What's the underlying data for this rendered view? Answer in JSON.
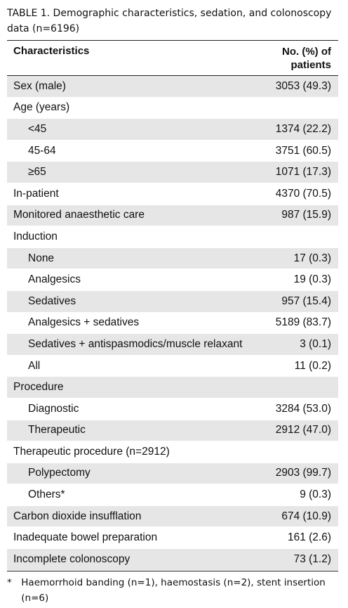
{
  "title": "TABLE 1. Demographic characteristics, sedation, and colonoscopy data (n=6196)",
  "table": {
    "header": [
      "Characteristics",
      "No. (%) of patients"
    ],
    "rows": [
      {
        "label": "Sex (male)",
        "value": "3053 (49.3)"
      },
      {
        "label": "Age (years)",
        "subrows": [
          {
            "label": "<45",
            "value": "1374 (22.2)"
          },
          {
            "label": "45-64",
            "value": "3751 (60.5)"
          },
          {
            "label": "≥65",
            "value": "1071 (17.3)"
          }
        ]
      },
      {
        "label": "In-patient",
        "value": "4370 (70.5)"
      },
      {
        "label": "Monitored anaesthetic care",
        "value": "987 (15.9)"
      },
      {
        "label": "Induction",
        "subrows": [
          {
            "label": "None",
            "value": "17 (0.3)"
          },
          {
            "label": "Analgesics",
            "value": "19 (0.3)"
          },
          {
            "label": "Sedatives",
            "value": "957 (15.4)"
          },
          {
            "label": "Analgesics + sedatives",
            "value": "5189 (83.7)"
          },
          {
            "label": "Sedatives + antispasmodics/muscle relaxant",
            "value": "3 (0.1)"
          },
          {
            "label": "All",
            "value": "11 (0.2)"
          }
        ]
      },
      {
        "label": "Procedure",
        "subrows": [
          {
            "label": "Diagnostic",
            "value": "3284 (53.0)"
          },
          {
            "label": "Therapeutic",
            "value": "2912 (47.0)"
          }
        ]
      },
      {
        "label": "Therapeutic procedure (n=2912)",
        "subrows": [
          {
            "label": "Polypectomy",
            "value": "2903 (99.7)"
          },
          {
            "label": "Others*",
            "value": "9 (0.3)"
          }
        ]
      },
      {
        "label": "Carbon dioxide insufflation",
        "value": "674 (10.9)"
      },
      {
        "label": "Inadequate bowel preparation",
        "value": "161 (2.6)"
      },
      {
        "label": "Incomplete colonoscopy",
        "value": "73 (1.2)"
      }
    ]
  },
  "footnote": {
    "mark": "*",
    "text": "Haemorrhoid banding (n=1), haemostasis (n=2), stent insertion (n=6)"
  }
}
